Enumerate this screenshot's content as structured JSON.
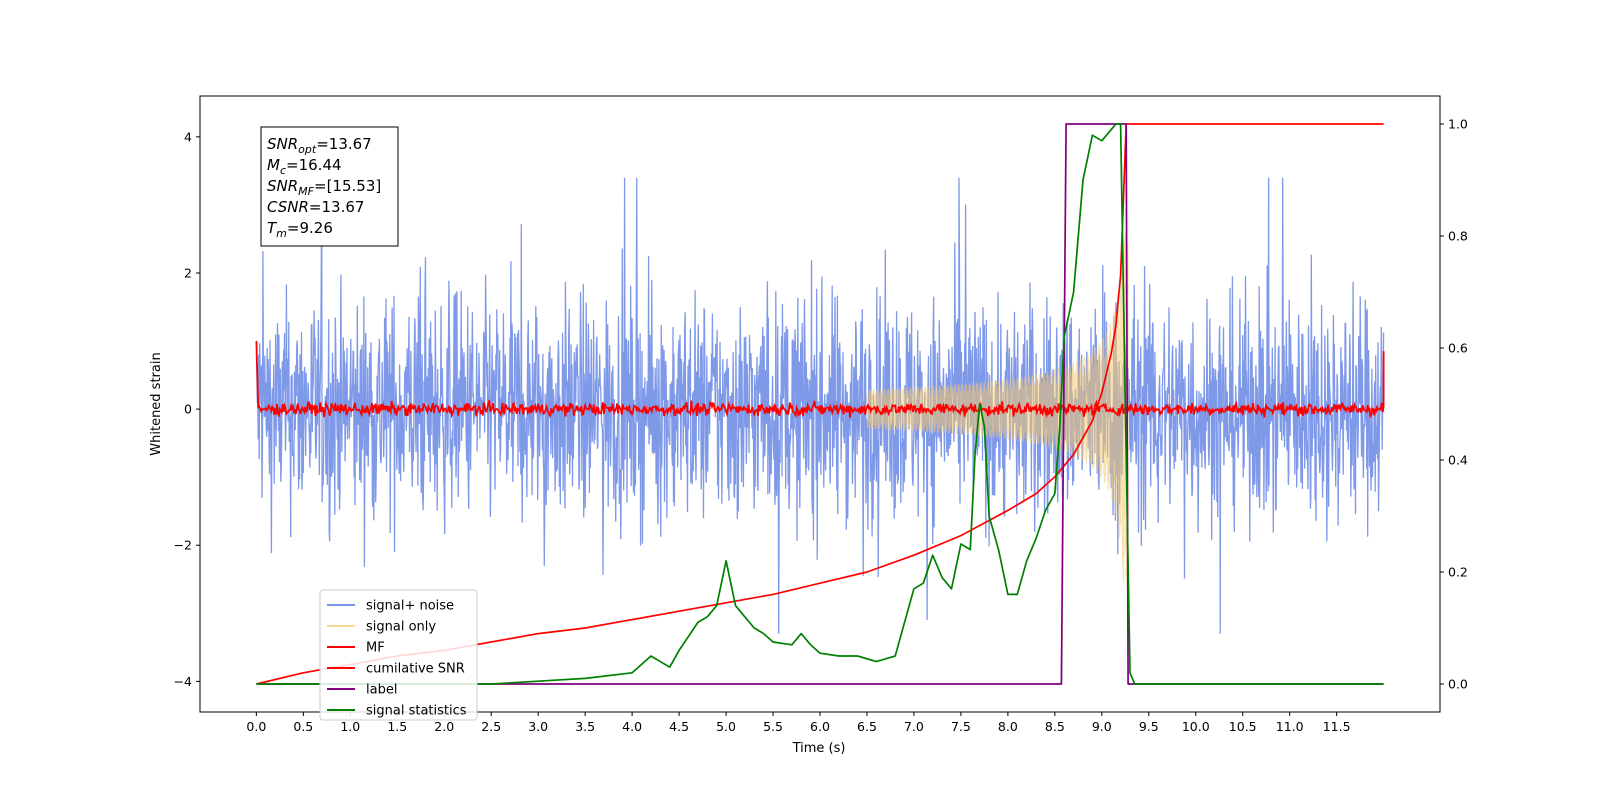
{
  "chart_data": {
    "type": "line",
    "xlabel": "Time (s)",
    "ylabel": "Whitened strain",
    "y2label": "",
    "xlim": [
      -0.6,
      12.6
    ],
    "ylim": [
      -4.45,
      4.6
    ],
    "y2lim": [
      -0.05,
      1.05
    ],
    "xticks": [
      "0.0",
      "0.5",
      "1.0",
      "1.5",
      "2.0",
      "2.5",
      "3.0",
      "3.5",
      "4.0",
      "4.5",
      "5.0",
      "5.5",
      "6.0",
      "6.5",
      "7.0",
      "7.5",
      "8.0",
      "8.5",
      "9.0",
      "9.5",
      "10.0",
      "10.5",
      "11.0",
      "11.5"
    ],
    "yticks": [
      "−4",
      "−2",
      "0",
      "2",
      "4"
    ],
    "y2ticks": [
      "0.0",
      "0.2",
      "0.4",
      "0.6",
      "0.8",
      "1.0"
    ],
    "legend_position": "lower-left",
    "annotation": {
      "lines": [
        {
          "sym": "SNR",
          "sub": "opt",
          "val": "=13.67"
        },
        {
          "sym": "M",
          "sub": "c",
          "val": "=16.44"
        },
        {
          "sym": "SNR",
          "sub": "MF",
          "val": "=[15.53]"
        },
        {
          "sym": "CSNR",
          "sub": "",
          "val": "=13.67"
        },
        {
          "sym": "T",
          "sub": "m",
          "val": "=9.26"
        }
      ]
    },
    "series": [
      {
        "name": "signal+ noise",
        "color": "#7893e8",
        "axis": "left",
        "description": "whitened noisy strain, approx. ±2.5 range with spikes to ±3.4"
      },
      {
        "name": "signal only",
        "color": "#f5c96e",
        "axis": "left",
        "description": "chirp signal growing in amplitude to ~±2.5 near t=9.26 then ending"
      },
      {
        "name": "MF",
        "color": "#ff0000",
        "axis": "left",
        "description": "matched filter output, near 0 with small fluctuations, ends at ~1.0 and ~0.85"
      },
      {
        "name": "cumilative SNR",
        "color": "#ff0000",
        "axis": "right",
        "x": [
          0.0,
          0.5,
          1.0,
          1.5,
          2.0,
          2.5,
          3.0,
          3.5,
          4.0,
          4.5,
          5.0,
          5.5,
          6.0,
          6.5,
          7.0,
          7.5,
          8.0,
          8.3,
          8.5,
          8.7,
          8.9,
          9.0,
          9.1,
          9.15,
          9.2,
          9.26,
          12.0
        ],
        "y": [
          0.0,
          0.02,
          0.035,
          0.05,
          0.06,
          0.075,
          0.09,
          0.1,
          0.115,
          0.13,
          0.145,
          0.16,
          0.18,
          0.2,
          0.23,
          0.265,
          0.31,
          0.34,
          0.37,
          0.41,
          0.47,
          0.52,
          0.59,
          0.64,
          0.73,
          1.0,
          1.0
        ]
      },
      {
        "name": "label",
        "color": "#800080",
        "axis": "right",
        "x": [
          0.0,
          8.57,
          8.62,
          9.26,
          9.28,
          12.0
        ],
        "y": [
          0.0,
          0.0,
          1.0,
          1.0,
          0.0,
          0.0
        ]
      },
      {
        "name": "signal statistics",
        "color": "#008000",
        "axis": "right",
        "x": [
          0.0,
          0.5,
          1.0,
          1.5,
          2.0,
          2.5,
          3.0,
          3.5,
          4.0,
          4.2,
          4.4,
          4.5,
          4.7,
          4.8,
          4.9,
          5.0,
          5.1,
          5.2,
          5.3,
          5.4,
          5.5,
          5.7,
          5.8,
          5.9,
          6.0,
          6.2,
          6.4,
          6.6,
          6.8,
          7.0,
          7.1,
          7.2,
          7.3,
          7.4,
          7.5,
          7.6,
          7.65,
          7.7,
          7.75,
          7.8,
          7.9,
          8.0,
          8.1,
          8.2,
          8.3,
          8.4,
          8.5,
          8.55,
          8.6,
          8.7,
          8.8,
          8.9,
          9.0,
          9.1,
          9.15,
          9.2,
          9.25,
          9.3,
          9.35,
          12.0
        ],
        "y": [
          0.0,
          0.0,
          0.0,
          0.0,
          0.0,
          0.0,
          0.005,
          0.01,
          0.02,
          0.05,
          0.03,
          0.06,
          0.11,
          0.12,
          0.14,
          0.22,
          0.14,
          0.12,
          0.1,
          0.09,
          0.075,
          0.07,
          0.09,
          0.07,
          0.055,
          0.05,
          0.05,
          0.04,
          0.05,
          0.17,
          0.18,
          0.23,
          0.19,
          0.17,
          0.25,
          0.24,
          0.41,
          0.5,
          0.46,
          0.3,
          0.24,
          0.16,
          0.16,
          0.22,
          0.26,
          0.31,
          0.34,
          0.45,
          0.62,
          0.7,
          0.9,
          0.98,
          0.97,
          0.99,
          1.0,
          1.0,
          0.5,
          0.02,
          0.0,
          0.0
        ]
      }
    ]
  },
  "colors": {
    "noise": "#7893e8",
    "signal": "#f5c96e",
    "mf": "#ff0000",
    "csnr": "#ff0000",
    "label": "#800080",
    "stats": "#008000"
  }
}
